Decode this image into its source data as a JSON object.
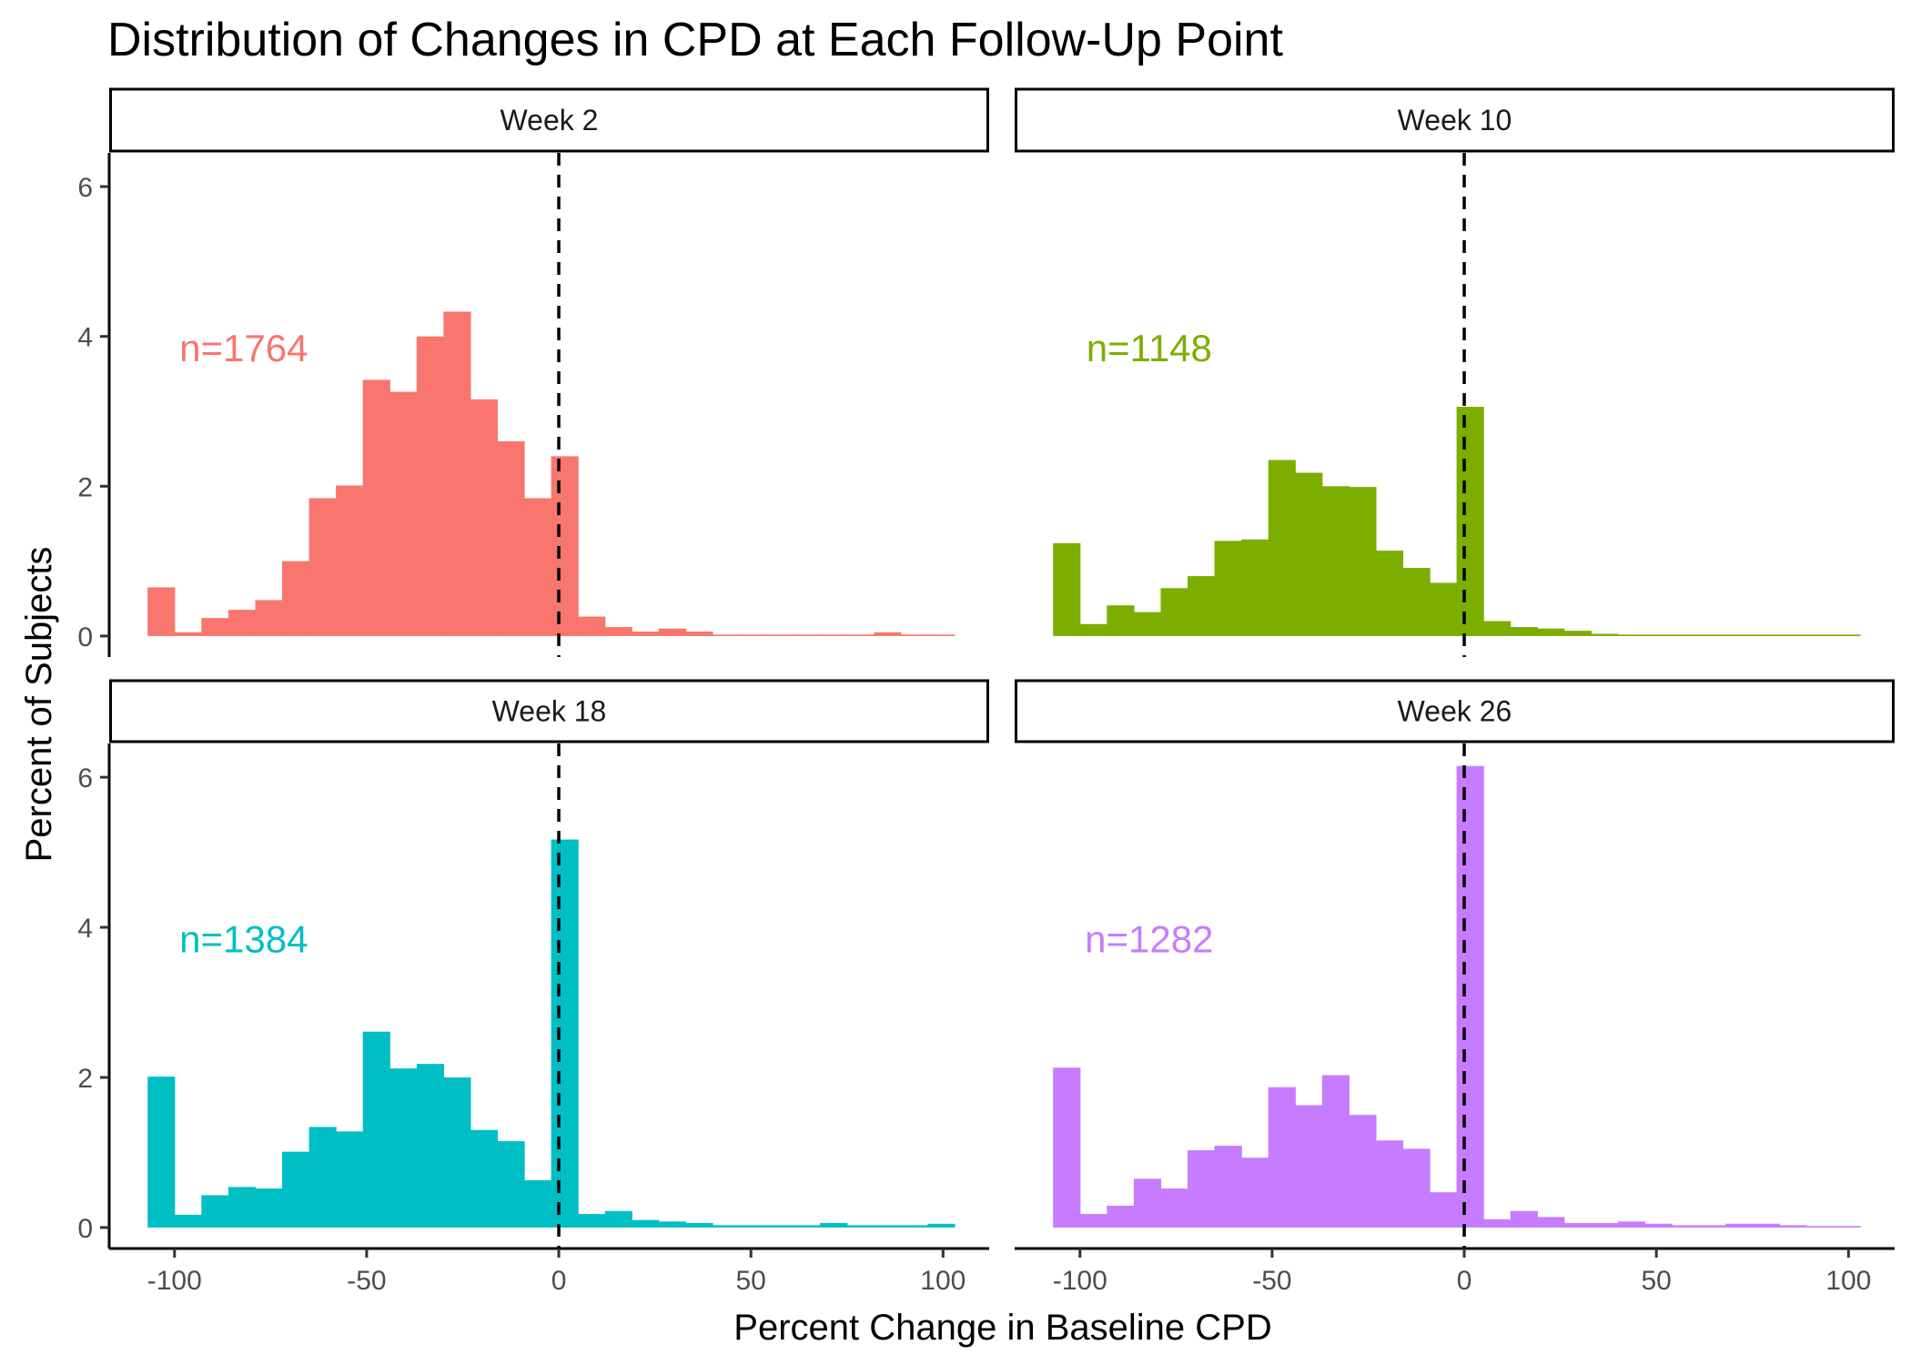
{
  "chart_data": {
    "type": "bar",
    "title": "Distribution of Changes in CPD at Each Follow-Up Point",
    "xlabel": "Percent Change in Baseline CPD",
    "ylabel": "Percent of Subjects",
    "xlim": [
      -117,
      112
    ],
    "ylim": [
      -0.28,
      6.45
    ],
    "x_ticks": [
      -100,
      -50,
      0,
      50,
      100
    ],
    "y_ticks": [
      0,
      2,
      4,
      6
    ],
    "bin_width": 7,
    "reference_line_x": 0,
    "bins": [
      -103.5,
      -96.5,
      -89.5,
      -82.5,
      -75.5,
      -68.5,
      -61.5,
      -54.5,
      -47.5,
      -40.5,
      -33.5,
      -26.5,
      -19.5,
      -12.5,
      -5.5,
      1.5,
      8.5,
      15.5,
      22.5,
      29.5,
      36.5,
      43.5,
      50.5,
      57.5,
      64.5,
      71.5,
      78.5,
      85.5,
      92.5,
      99.5
    ],
    "series": [
      {
        "name": "Week 2",
        "label": "n=1764",
        "color": "#F8766D",
        "values": [
          0.65,
          0.05,
          0.24,
          0.35,
          0.48,
          1.0,
          1.84,
          2.01,
          3.42,
          3.26,
          4.0,
          4.33,
          3.16,
          2.6,
          1.84,
          2.4,
          0.26,
          0.12,
          0.06,
          0.1,
          0.06,
          0.02,
          0.02,
          0.02,
          0.02,
          0.02,
          0.02,
          0.05,
          0.02,
          0.02
        ]
      },
      {
        "name": "Week 10",
        "label": "n=1148",
        "color": "#7CAE00",
        "values": [
          1.24,
          0.16,
          0.41,
          0.32,
          0.64,
          0.8,
          1.27,
          1.29,
          2.35,
          2.18,
          2.0,
          1.99,
          1.14,
          0.91,
          0.71,
          3.06,
          0.2,
          0.12,
          0.1,
          0.07,
          0.03,
          0.02,
          0.02,
          0.02,
          0.02,
          0.02,
          0.02,
          0.02,
          0.02,
          0.02
        ]
      },
      {
        "name": "Week 18",
        "label": "n=1384",
        "color": "#00BFC4",
        "values": [
          2.01,
          0.17,
          0.43,
          0.54,
          0.52,
          1.01,
          1.34,
          1.28,
          2.61,
          2.12,
          2.18,
          2.0,
          1.3,
          1.15,
          0.63,
          5.17,
          0.18,
          0.22,
          0.1,
          0.08,
          0.06,
          0.03,
          0.03,
          0.03,
          0.03,
          0.06,
          0.03,
          0.03,
          0.03,
          0.05
        ]
      },
      {
        "name": "Week 26",
        "label": "n=1282",
        "color": "#C77CFF",
        "values": [
          2.13,
          0.18,
          0.29,
          0.65,
          0.52,
          1.03,
          1.09,
          0.93,
          1.87,
          1.63,
          2.03,
          1.5,
          1.16,
          1.05,
          0.47,
          6.15,
          0.11,
          0.22,
          0.14,
          0.06,
          0.06,
          0.08,
          0.05,
          0.03,
          0.03,
          0.05,
          0.05,
          0.03,
          0.02,
          0.02
        ]
      }
    ]
  }
}
